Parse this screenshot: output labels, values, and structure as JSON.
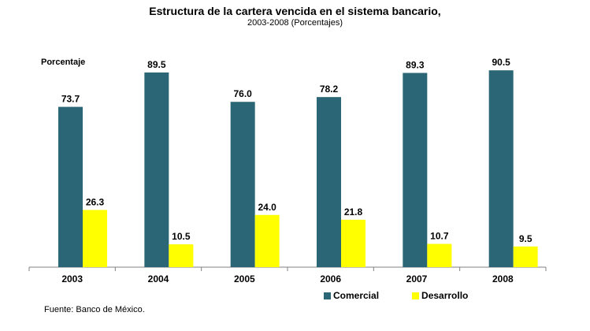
{
  "chart_data": {
    "type": "bar",
    "title": "Estructura de la cartera vencida en el sistema bancario,",
    "subtitle": "2003-2008  (Porcentajes)",
    "ylabel": "Porcentaje",
    "xlabel": "",
    "categories": [
      "2003",
      "2004",
      "2005",
      "2006",
      "2007",
      "2008"
    ],
    "series": [
      {
        "name": "Comercial",
        "color": "#2a6676",
        "values": [
          73.7,
          89.5,
          76.0,
          78.2,
          89.3,
          90.5
        ]
      },
      {
        "name": "Desarrollo",
        "color": "#ffff00",
        "values": [
          26.3,
          10.5,
          24.0,
          21.8,
          10.7,
          9.5
        ]
      }
    ],
    "ylim": [
      0,
      100
    ],
    "grid": false,
    "legend_position": "bottom-right",
    "data_labels": true
  },
  "source": "Fuente: Banco de México."
}
